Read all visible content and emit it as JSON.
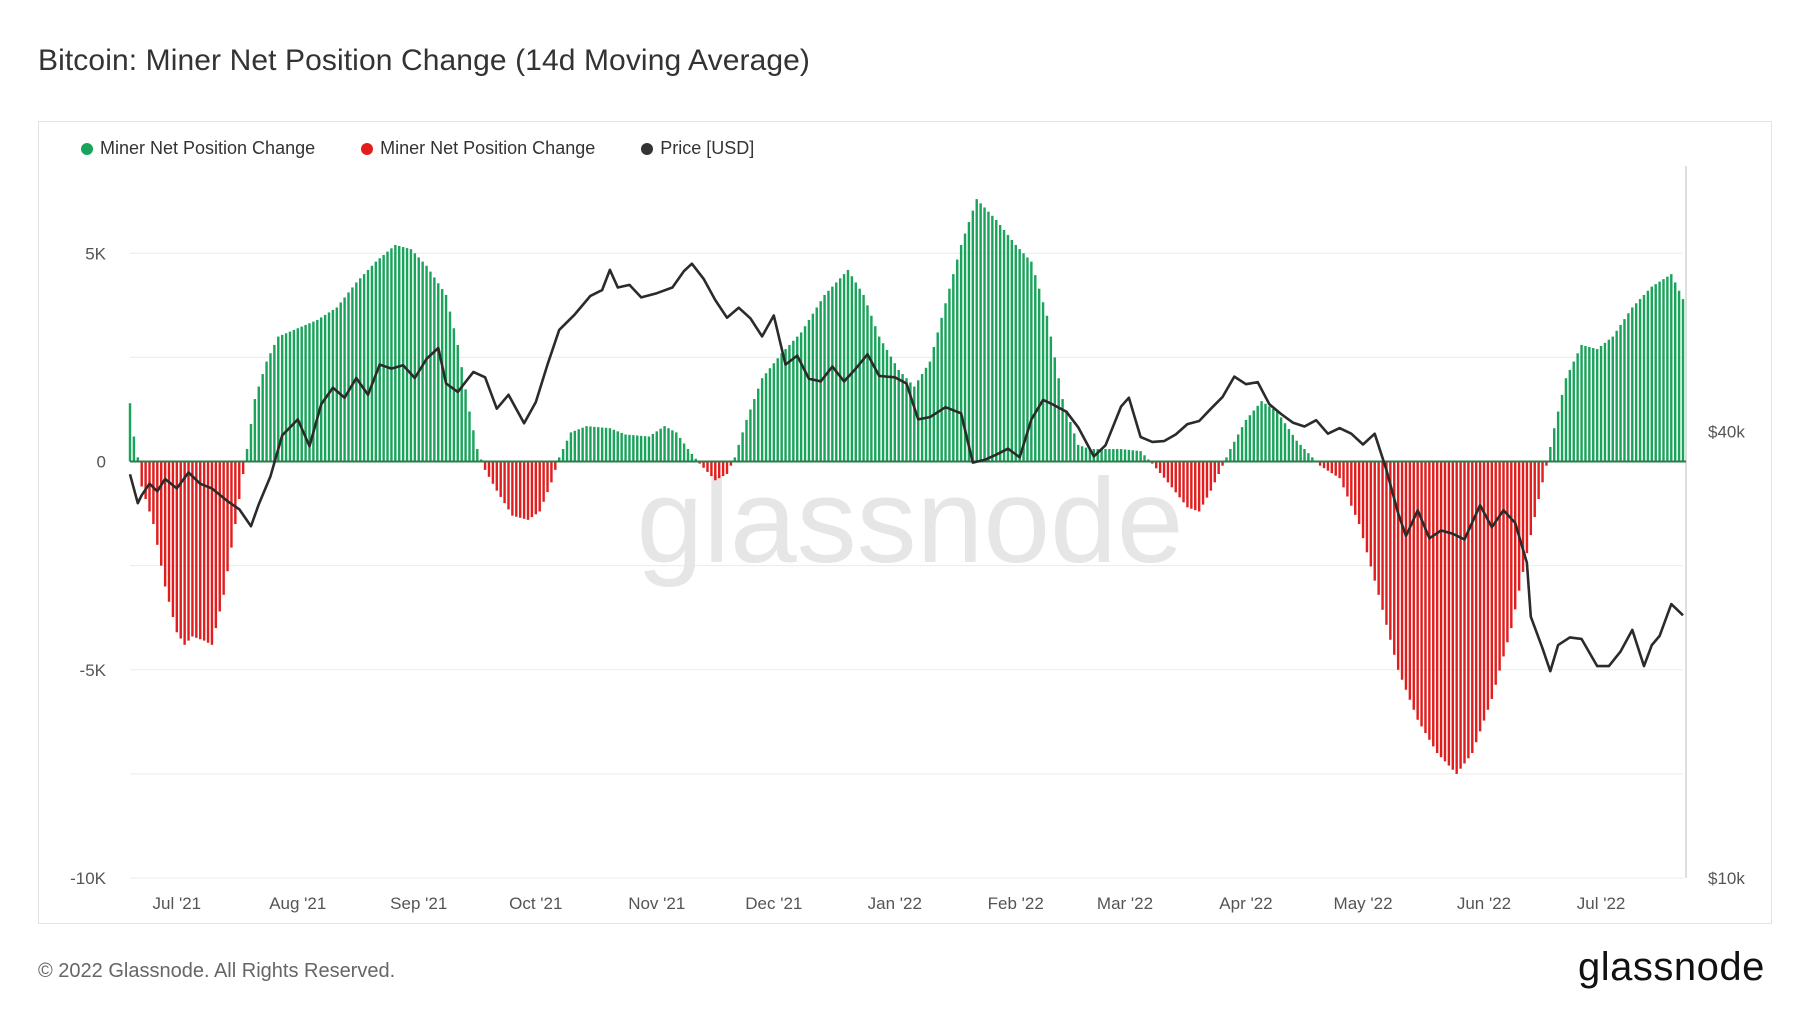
{
  "title": "Bitcoin: Miner Net Position Change (14d Moving Average)",
  "footer": "© 2022 Glassnode. All Rights Reserved.",
  "brand": "glassnode",
  "watermark": "glassnode",
  "legend": [
    {
      "label": "Miner Net Position Change",
      "color": "#1aa35a"
    },
    {
      "label": "Miner Net Position Change",
      "color": "#e11d1d"
    },
    {
      "label": "Price [USD]",
      "color": "#333333"
    }
  ],
  "colors": {
    "positive": "#1aa35a",
    "negative": "#e11d1d",
    "price": "#2b2b2b",
    "grid": "#ececec",
    "zero": "#2f7a4d"
  },
  "chart_data": {
    "type": "bar+line",
    "title": "Bitcoin: Miner Net Position Change (14d Moving Average)",
    "x_start": "2021-06-19",
    "x_end": "2022-07-22",
    "y_left": {
      "min": -10000,
      "max": 7000,
      "ticks": [
        {
          "value": 5000,
          "label": "5K"
        },
        {
          "value": 0,
          "label": "0"
        },
        {
          "value": -5000,
          "label": "-5K"
        },
        {
          "value": -10000,
          "label": "-10K"
        }
      ]
    },
    "y_right": {
      "scale": "log",
      "min": 10000,
      "max": 90000,
      "ticks": [
        {
          "value": 40000,
          "label": "$40k"
        },
        {
          "value": 10000,
          "label": "$10k"
        }
      ]
    },
    "x_ticks": [
      {
        "date": "2021-07-01",
        "label": "Jul '21"
      },
      {
        "date": "2021-08-01",
        "label": "Aug '21"
      },
      {
        "date": "2021-09-01",
        "label": "Sep '21"
      },
      {
        "date": "2021-10-01",
        "label": "Oct '21"
      },
      {
        "date": "2021-11-01",
        "label": "Nov '21"
      },
      {
        "date": "2021-12-01",
        "label": "Dec '21"
      },
      {
        "date": "2022-01-01",
        "label": "Jan '22"
      },
      {
        "date": "2022-02-01",
        "label": "Feb '22"
      },
      {
        "date": "2022-03-01",
        "label": "Mar '22"
      },
      {
        "date": "2022-04-01",
        "label": "Apr '22"
      },
      {
        "date": "2022-05-01",
        "label": "May '22"
      },
      {
        "date": "2022-06-01",
        "label": "Jun '22"
      },
      {
        "date": "2022-07-01",
        "label": "Jul '22"
      }
    ],
    "net_position_keypoints": [
      [
        "2021-06-19",
        1400
      ],
      [
        "2021-06-20",
        600
      ],
      [
        "2021-06-21",
        100
      ],
      [
        "2021-06-22",
        -600
      ],
      [
        "2021-06-25",
        -1500
      ],
      [
        "2021-06-28",
        -3000
      ],
      [
        "2021-07-01",
        -4100
      ],
      [
        "2021-07-03",
        -4400
      ],
      [
        "2021-07-05",
        -4200
      ],
      [
        "2021-07-08",
        -4300
      ],
      [
        "2021-07-10",
        -4400
      ],
      [
        "2021-07-13",
        -3200
      ],
      [
        "2021-07-16",
        -1500
      ],
      [
        "2021-07-18",
        -300
      ],
      [
        "2021-07-19",
        300
      ],
      [
        "2021-07-21",
        1500
      ],
      [
        "2021-07-24",
        2400
      ],
      [
        "2021-07-27",
        3000
      ],
      [
        "2021-08-01",
        3200
      ],
      [
        "2021-08-06",
        3400
      ],
      [
        "2021-08-11",
        3700
      ],
      [
        "2021-08-16",
        4300
      ],
      [
        "2021-08-21",
        4800
      ],
      [
        "2021-08-26",
        5200
      ],
      [
        "2021-08-30",
        5100
      ],
      [
        "2021-09-03",
        4700
      ],
      [
        "2021-09-08",
        4000
      ],
      [
        "2021-09-11",
        2800
      ],
      [
        "2021-09-14",
        1200
      ],
      [
        "2021-09-16",
        300
      ],
      [
        "2021-09-18",
        -200
      ],
      [
        "2021-09-21",
        -700
      ],
      [
        "2021-09-25",
        -1300
      ],
      [
        "2021-09-29",
        -1400
      ],
      [
        "2021-10-02",
        -1200
      ],
      [
        "2021-10-05",
        -500
      ],
      [
        "2021-10-07",
        100
      ],
      [
        "2021-10-10",
        700
      ],
      [
        "2021-10-14",
        850
      ],
      [
        "2021-10-20",
        800
      ],
      [
        "2021-10-24",
        650
      ],
      [
        "2021-10-30",
        600
      ],
      [
        "2021-11-03",
        850
      ],
      [
        "2021-11-06",
        700
      ],
      [
        "2021-11-09",
        300
      ],
      [
        "2021-11-12",
        -50
      ],
      [
        "2021-11-16",
        -450
      ],
      [
        "2021-11-19",
        -300
      ],
      [
        "2021-11-21",
        100
      ],
      [
        "2021-11-24",
        1000
      ],
      [
        "2021-11-28",
        2000
      ],
      [
        "2021-12-03",
        2600
      ],
      [
        "2021-12-08",
        3100
      ],
      [
        "2021-12-14",
        4000
      ],
      [
        "2021-12-20",
        4600
      ],
      [
        "2021-12-24",
        4000
      ],
      [
        "2021-12-28",
        3000
      ],
      [
        "2022-01-02",
        2200
      ],
      [
        "2022-01-06",
        1800
      ],
      [
        "2022-01-10",
        2400
      ],
      [
        "2022-01-14",
        3800
      ],
      [
        "2022-01-18",
        5200
      ],
      [
        "2022-01-22",
        6300
      ],
      [
        "2022-01-27",
        5800
      ],
      [
        "2022-02-01",
        5200
      ],
      [
        "2022-02-05",
        4800
      ],
      [
        "2022-02-09",
        3500
      ],
      [
        "2022-02-13",
        1500
      ],
      [
        "2022-02-17",
        400
      ],
      [
        "2022-02-20",
        300
      ],
      [
        "2022-02-28",
        300
      ],
      [
        "2022-03-05",
        250
      ],
      [
        "2022-03-08",
        -50
      ],
      [
        "2022-03-12",
        -500
      ],
      [
        "2022-03-17",
        -1100
      ],
      [
        "2022-03-20",
        -1200
      ],
      [
        "2022-03-23",
        -700
      ],
      [
        "2022-03-26",
        -100
      ],
      [
        "2022-03-28",
        300
      ],
      [
        "2022-04-01",
        1000
      ],
      [
        "2022-04-05",
        1450
      ],
      [
        "2022-04-09",
        1200
      ],
      [
        "2022-04-14",
        500
      ],
      [
        "2022-04-18",
        100
      ],
      [
        "2022-04-20",
        -100
      ],
      [
        "2022-04-25",
        -400
      ],
      [
        "2022-04-30",
        -1500
      ],
      [
        "2022-05-05",
        -3200
      ],
      [
        "2022-05-10",
        -5000
      ],
      [
        "2022-05-15",
        -6200
      ],
      [
        "2022-05-20",
        -7000
      ],
      [
        "2022-05-25",
        -7500
      ],
      [
        "2022-05-29",
        -7000
      ],
      [
        "2022-06-03",
        -5700
      ],
      [
        "2022-06-08",
        -4000
      ],
      [
        "2022-06-12",
        -2200
      ],
      [
        "2022-06-15",
        -900
      ],
      [
        "2022-06-17",
        -100
      ],
      [
        "2022-06-19",
        800
      ],
      [
        "2022-06-22",
        2000
      ],
      [
        "2022-06-26",
        2800
      ],
      [
        "2022-06-30",
        2700
      ],
      [
        "2022-07-04",
        3000
      ],
      [
        "2022-07-09",
        3700
      ],
      [
        "2022-07-14",
        4200
      ],
      [
        "2022-07-19",
        4500
      ],
      [
        "2022-07-22",
        3900
      ]
    ],
    "price_usd": [
      [
        "2021-06-19",
        35000
      ],
      [
        "2021-06-21",
        32000
      ],
      [
        "2021-06-22",
        32800
      ],
      [
        "2021-06-24",
        34000
      ],
      [
        "2021-06-26",
        33200
      ],
      [
        "2021-06-28",
        34500
      ],
      [
        "2021-07-01",
        33500
      ],
      [
        "2021-07-04",
        35200
      ],
      [
        "2021-07-07",
        34000
      ],
      [
        "2021-07-10",
        33500
      ],
      [
        "2021-07-14",
        32200
      ],
      [
        "2021-07-17",
        31400
      ],
      [
        "2021-07-20",
        29800
      ],
      [
        "2021-07-22",
        31900
      ],
      [
        "2021-07-25",
        34800
      ],
      [
        "2021-07-28",
        39500
      ],
      [
        "2021-08-01",
        41500
      ],
      [
        "2021-08-04",
        38200
      ],
      [
        "2021-08-07",
        43500
      ],
      [
        "2021-08-10",
        45800
      ],
      [
        "2021-08-13",
        44400
      ],
      [
        "2021-08-16",
        47200
      ],
      [
        "2021-08-19",
        44800
      ],
      [
        "2021-08-22",
        49200
      ],
      [
        "2021-08-25",
        48600
      ],
      [
        "2021-08-28",
        49100
      ],
      [
        "2021-08-31",
        47200
      ],
      [
        "2021-09-03",
        50100
      ],
      [
        "2021-09-06",
        51800
      ],
      [
        "2021-09-08",
        46400
      ],
      [
        "2021-09-11",
        45200
      ],
      [
        "2021-09-15",
        48100
      ],
      [
        "2021-09-18",
        47300
      ],
      [
        "2021-09-21",
        42900
      ],
      [
        "2021-09-24",
        44800
      ],
      [
        "2021-09-28",
        41000
      ],
      [
        "2021-10-01",
        43800
      ],
      [
        "2021-10-04",
        49200
      ],
      [
        "2021-10-07",
        54800
      ],
      [
        "2021-10-11",
        57500
      ],
      [
        "2021-10-15",
        60900
      ],
      [
        "2021-10-18",
        62000
      ],
      [
        "2021-10-20",
        66000
      ],
      [
        "2021-10-22",
        62500
      ],
      [
        "2021-10-25",
        63000
      ],
      [
        "2021-10-28",
        60600
      ],
      [
        "2021-11-01",
        61400
      ],
      [
        "2021-11-05",
        62500
      ],
      [
        "2021-11-08",
        65800
      ],
      [
        "2021-11-10",
        67300
      ],
      [
        "2021-11-13",
        64200
      ],
      [
        "2021-11-16",
        60100
      ],
      [
        "2021-11-19",
        56900
      ],
      [
        "2021-11-22",
        58700
      ],
      [
        "2021-11-25",
        56800
      ],
      [
        "2021-11-28",
        53700
      ],
      [
        "2021-12-01",
        57300
      ],
      [
        "2021-12-04",
        49200
      ],
      [
        "2021-12-07",
        50600
      ],
      [
        "2021-12-10",
        47100
      ],
      [
        "2021-12-13",
        46700
      ],
      [
        "2021-12-16",
        48900
      ],
      [
        "2021-12-19",
        46700
      ],
      [
        "2021-12-22",
        48600
      ],
      [
        "2021-12-25",
        50800
      ],
      [
        "2021-12-28",
        47500
      ],
      [
        "2022-01-01",
        47300
      ],
      [
        "2022-01-04",
        46400
      ],
      [
        "2022-01-07",
        41500
      ],
      [
        "2022-01-10",
        41800
      ],
      [
        "2022-01-14",
        43100
      ],
      [
        "2022-01-18",
        42300
      ],
      [
        "2022-01-21",
        36300
      ],
      [
        "2022-01-24",
        36600
      ],
      [
        "2022-01-27",
        37200
      ],
      [
        "2022-01-30",
        37900
      ],
      [
        "2022-02-02",
        36900
      ],
      [
        "2022-02-05",
        41500
      ],
      [
        "2022-02-08",
        44100
      ],
      [
        "2022-02-10",
        43600
      ],
      [
        "2022-02-14",
        42500
      ],
      [
        "2022-02-17",
        40500
      ],
      [
        "2022-02-21",
        37000
      ],
      [
        "2022-02-24",
        38300
      ],
      [
        "2022-02-28",
        43200
      ],
      [
        "2022-03-02",
        44400
      ],
      [
        "2022-03-05",
        39300
      ],
      [
        "2022-03-08",
        38700
      ],
      [
        "2022-03-11",
        38800
      ],
      [
        "2022-03-14",
        39600
      ],
      [
        "2022-03-17",
        40900
      ],
      [
        "2022-03-20",
        41300
      ],
      [
        "2022-03-23",
        42900
      ],
      [
        "2022-03-26",
        44500
      ],
      [
        "2022-03-29",
        47400
      ],
      [
        "2022-04-01",
        46300
      ],
      [
        "2022-04-04",
        46600
      ],
      [
        "2022-04-07",
        43500
      ],
      [
        "2022-04-10",
        42200
      ],
      [
        "2022-04-13",
        41100
      ],
      [
        "2022-04-16",
        40600
      ],
      [
        "2022-04-19",
        41400
      ],
      [
        "2022-04-22",
        39700
      ],
      [
        "2022-04-25",
        40400
      ],
      [
        "2022-04-28",
        39700
      ],
      [
        "2022-05-01",
        38400
      ],
      [
        "2022-05-04",
        39700
      ],
      [
        "2022-05-07",
        35500
      ],
      [
        "2022-05-10",
        31000
      ],
      [
        "2022-05-12",
        28900
      ],
      [
        "2022-05-15",
        31300
      ],
      [
        "2022-05-18",
        28700
      ],
      [
        "2022-05-21",
        29400
      ],
      [
        "2022-05-24",
        29100
      ],
      [
        "2022-05-27",
        28600
      ],
      [
        "2022-05-31",
        31800
      ],
      [
        "2022-06-03",
        29700
      ],
      [
        "2022-06-06",
        31300
      ],
      [
        "2022-06-09",
        30100
      ],
      [
        "2022-06-12",
        26600
      ],
      [
        "2022-06-13",
        22500
      ],
      [
        "2022-06-16",
        20400
      ],
      [
        "2022-06-18",
        19000
      ],
      [
        "2022-06-20",
        20600
      ],
      [
        "2022-06-23",
        21100
      ],
      [
        "2022-06-26",
        21000
      ],
      [
        "2022-06-30",
        19300
      ],
      [
        "2022-07-03",
        19300
      ],
      [
        "2022-07-06",
        20200
      ],
      [
        "2022-07-09",
        21600
      ],
      [
        "2022-07-12",
        19300
      ],
      [
        "2022-07-14",
        20600
      ],
      [
        "2022-07-16",
        21200
      ],
      [
        "2022-07-19",
        23400
      ],
      [
        "2022-07-22",
        22600
      ]
    ]
  }
}
